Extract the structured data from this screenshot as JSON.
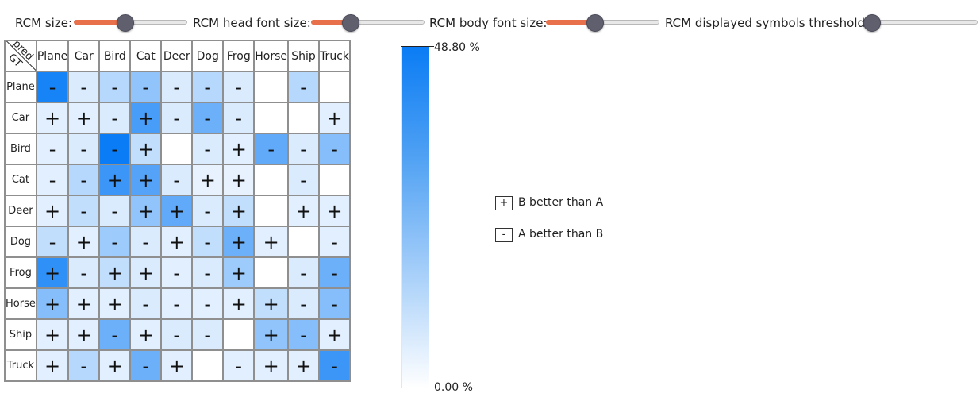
{
  "controls": [
    {
      "name": "rcm-size-slider",
      "label": "RCM size:",
      "value": 0.45
    },
    {
      "name": "rcm-head-font-size-slider",
      "label": "RCM head font size:",
      "value": 0.34
    },
    {
      "name": "rcm-body-font-size-slider",
      "label": "RCM body font size:",
      "value": 0.43
    },
    {
      "name": "rcm-displayed-symbols-threshold-slider",
      "label": "RCM displayed symbols threshold:",
      "value": 0.0
    }
  ],
  "matrix": {
    "corner_pred": "pred",
    "corner_gt": "GT",
    "classes": [
      "Plane",
      "Car",
      "Bird",
      "Cat",
      "Deer",
      "Dog",
      "Frog",
      "Horse",
      "Ship",
      "Truck"
    ],
    "symbols": [
      [
        "-",
        "-",
        "-",
        "-",
        "-",
        "-",
        "-",
        "",
        "-",
        ""
      ],
      [
        "+",
        "+",
        "-",
        "+",
        "-",
        "-",
        "-",
        "",
        "",
        "+"
      ],
      [
        "-",
        "-",
        "-",
        "+",
        "",
        "-",
        "+",
        "-",
        "-",
        "-"
      ],
      [
        "-",
        "-",
        "+",
        "+",
        "-",
        "+",
        "+",
        "",
        "-",
        ""
      ],
      [
        "+",
        "-",
        "-",
        "+",
        "+",
        "-",
        "+",
        "",
        "+",
        "+"
      ],
      [
        "-",
        "+",
        "-",
        "-",
        "+",
        "-",
        "+",
        "+",
        "",
        "-"
      ],
      [
        "+",
        "-",
        "+",
        "+",
        "-",
        "-",
        "+",
        "",
        "-",
        "-"
      ],
      [
        "+",
        "+",
        "+",
        "-",
        "-",
        "-",
        "+",
        "+",
        "-",
        "-"
      ],
      [
        "+",
        "+",
        "-",
        "+",
        "-",
        "-",
        "",
        "+",
        "-",
        "+"
      ],
      [
        "+",
        "-",
        "+",
        "-",
        "+",
        "",
        "-",
        "+",
        "+",
        "-"
      ]
    ],
    "intensity": [
      [
        0.95,
        0.15,
        0.3,
        0.45,
        0.15,
        0.3,
        0.15,
        0.0,
        0.3,
        0.0
      ],
      [
        0.12,
        0.12,
        0.15,
        0.75,
        0.15,
        0.6,
        0.15,
        0.0,
        0.0,
        0.12
      ],
      [
        0.12,
        0.15,
        1.0,
        0.25,
        0.0,
        0.15,
        0.12,
        0.65,
        0.15,
        0.5
      ],
      [
        0.12,
        0.3,
        0.8,
        0.7,
        0.15,
        0.1,
        0.1,
        0.0,
        0.15,
        0.0
      ],
      [
        0.12,
        0.25,
        0.15,
        0.45,
        0.65,
        0.15,
        0.25,
        0.0,
        0.12,
        0.12
      ],
      [
        0.25,
        0.12,
        0.4,
        0.15,
        0.12,
        0.25,
        0.6,
        0.12,
        0.0,
        0.12
      ],
      [
        0.85,
        0.15,
        0.25,
        0.15,
        0.12,
        0.15,
        0.4,
        0.0,
        0.15,
        0.6
      ],
      [
        0.5,
        0.12,
        0.12,
        0.15,
        0.12,
        0.12,
        0.12,
        0.25,
        0.15,
        0.5
      ],
      [
        0.12,
        0.12,
        0.6,
        0.12,
        0.15,
        0.15,
        0.0,
        0.45,
        0.5,
        0.12
      ],
      [
        0.12,
        0.3,
        0.12,
        0.6,
        0.12,
        0.0,
        0.12,
        0.12,
        0.12,
        0.8
      ]
    ]
  },
  "colorbar": {
    "max_label": "48.80 %",
    "min_label": "0.00 %",
    "color_high": "#0a7cf5",
    "color_low": "#ffffff"
  },
  "legend": {
    "plus_symbol": "+",
    "plus_text": "B better than A",
    "minus_symbol": "-",
    "minus_text": "A better than B"
  },
  "colors": {
    "slider_fill": "#e8704a",
    "slider_thumb": "#5f5f6e"
  }
}
